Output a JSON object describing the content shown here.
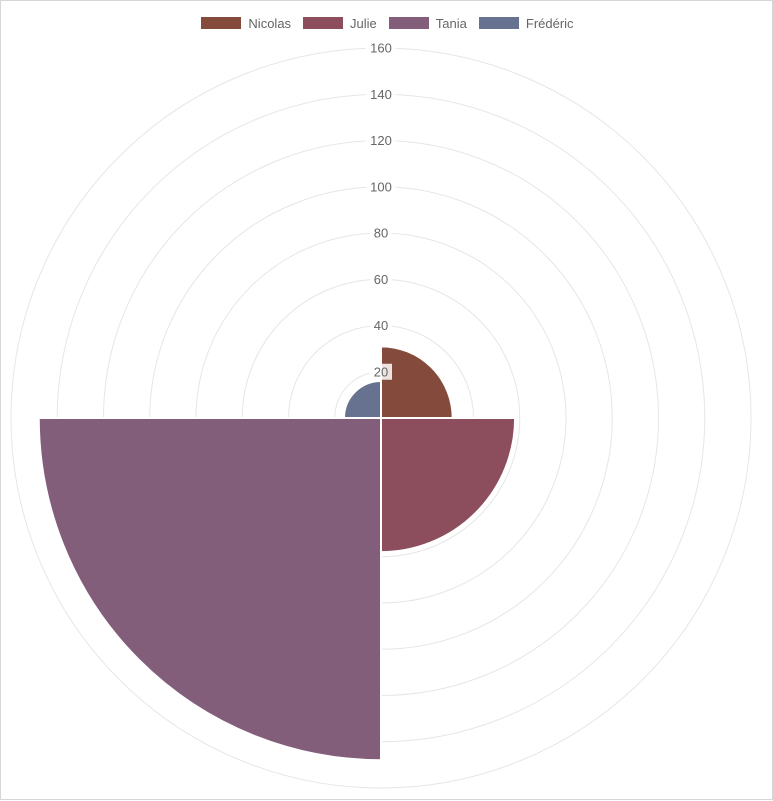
{
  "chart_data": {
    "type": "polar-area",
    "series": [
      {
        "name": "Nicolas",
        "value": 31,
        "color": "#844a3b"
      },
      {
        "name": "Julie",
        "value": 58,
        "color": "#8c4d5d"
      },
      {
        "name": "Tania",
        "value": 148,
        "color": "#825e7b"
      },
      {
        "name": "Frédéric",
        "value": 16,
        "color": "#66728f"
      }
    ],
    "r_ticks": [
      "20",
      "40",
      "60",
      "80",
      "100",
      "120",
      "140",
      "160"
    ],
    "r_range": [
      0,
      160
    ],
    "r_max_grid": 160,
    "grid": true,
    "legend_position": "top"
  }
}
